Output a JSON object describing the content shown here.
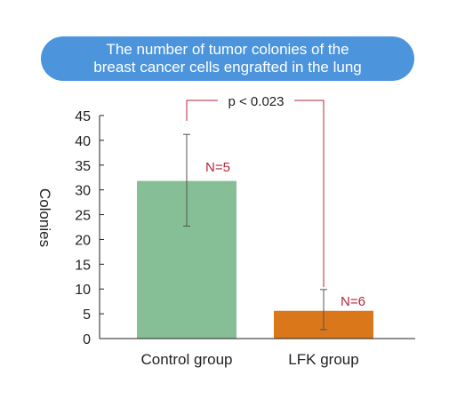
{
  "chart_data": {
    "type": "bar",
    "title": [
      "The number of tumor colonies of the",
      "breast cancer cells engrafted in the lung"
    ],
    "ylabel": "Colonies",
    "xlabel": "",
    "ylim": [
      0,
      45
    ],
    "yticks": [
      0,
      5,
      10,
      15,
      20,
      25,
      30,
      35,
      40,
      45
    ],
    "categories": [
      "Control group",
      "LFK group"
    ],
    "values": [
      31.8,
      5.6
    ],
    "error_low": [
      22.7,
      1.8
    ],
    "error_high": [
      41.2,
      9.9
    ],
    "bar_colors": [
      "#86bf95",
      "#d9771a"
    ],
    "annotations": [
      "N=5",
      "N=6"
    ],
    "annotation_color": "#b5253a",
    "significance": {
      "label": "p < 0.023",
      "color": "#b5253a"
    },
    "grid": false
  }
}
